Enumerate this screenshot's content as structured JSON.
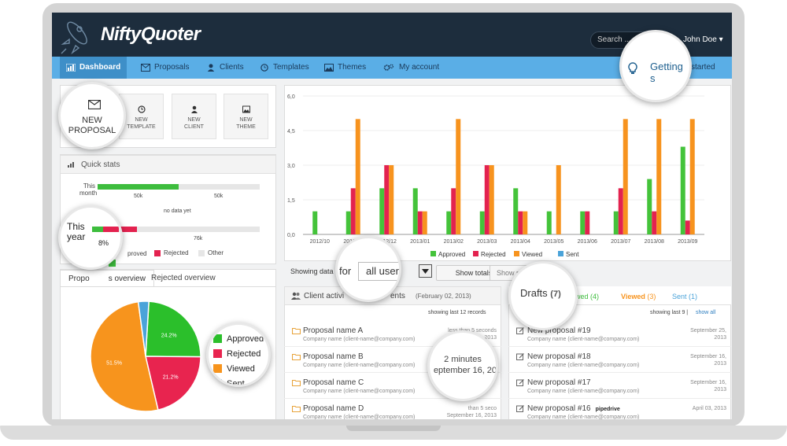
{
  "app": {
    "logo": "NiftyQuoter",
    "search_placeholder": "Search ...",
    "user": "John Doe ▾"
  },
  "nav": {
    "dashboard": "Dashboard",
    "proposals": "Proposals",
    "clients": "Clients",
    "templates": "Templates",
    "themes": "Themes",
    "account": "My account",
    "getting_started": "Getting s",
    "getting_started_rest": "started"
  },
  "quick_actions": {
    "new_proposal_1": "NEW",
    "new_proposal_2": "PROPOSAL",
    "new_template_1": "NEW",
    "new_template_2": "TEMPLATE",
    "new_client_1": "NEW",
    "new_client_2": "CLIENT",
    "new_theme_1": "NEW",
    "new_theme_2": "THEME"
  },
  "quick_stats": {
    "title": "Quick stats",
    "this_month_1": "This",
    "this_month_2": "month",
    "month_left_value": "50k",
    "month_right_value": "50k",
    "month_fill": 0.5,
    "no_data": "no data yet",
    "this_year_1": "This",
    "this_year_2": "year",
    "year_left_value": "8%",
    "year_right_value": "76k",
    "legend_approved": "Approved",
    "legend_rejected": "Rejected",
    "legend_other": "Other",
    "legend_approved_partial": "proved"
  },
  "overview_tabs": {
    "proposals": "Proposals overview",
    "proposals_partial": "Propo",
    "proposals_partial2": "s overview",
    "rejected": "Rejected overview"
  },
  "pie": {
    "slices": [
      {
        "label": "Approved",
        "value": 24.2,
        "color": "#2bbf2b",
        "text": "24.2%"
      },
      {
        "label": "Rejected",
        "value": 21.2,
        "color": "#e8244f",
        "text": "21.2%"
      },
      {
        "label": "Viewed",
        "value": 51.5,
        "color": "#f7941d",
        "text": "51.5%"
      },
      {
        "label": "Sent",
        "value": 3.1,
        "color": "#4aa3d9",
        "text": ""
      }
    ],
    "legend": [
      "Approved",
      "Rejected",
      "Viewed",
      "Sent"
    ]
  },
  "chart_data": {
    "type": "bar",
    "categories": [
      "2012/10",
      "2012/11",
      "2012/12",
      "2013/01",
      "2013/02",
      "2013/03",
      "2013/04",
      "2013/05",
      "2013/06",
      "2013/07",
      "2013/08",
      "2013/09"
    ],
    "series": [
      {
        "name": "Approved",
        "color": "#44c33a",
        "values": [
          1,
          1,
          2,
          2,
          1,
          1,
          2,
          1,
          1,
          1,
          2.4,
          3.8
        ]
      },
      {
        "name": "Rejected",
        "color": "#e3224f",
        "values": [
          0,
          2,
          3,
          1,
          2,
          3,
          1,
          0,
          1,
          2,
          1,
          0.6
        ]
      },
      {
        "name": "Viewed",
        "color": "#f7931e",
        "values": [
          0,
          5,
          3,
          1,
          5,
          3,
          1,
          3,
          0,
          5,
          5,
          5
        ]
      },
      {
        "name": "Sent",
        "color": "#4aa3d9",
        "values": [
          0,
          0,
          0,
          0,
          0,
          0,
          0,
          0,
          0,
          0,
          0,
          0
        ]
      }
    ],
    "ylim": [
      0,
      6
    ],
    "yticks": [
      "0,0",
      "1,5",
      "3,0",
      "4,5",
      "6,0"
    ],
    "legend": [
      "Approved",
      "Rejected",
      "Viewed",
      "Sent"
    ]
  },
  "filter": {
    "showing_data": "Showing data",
    "for": "for",
    "users_value": "all users",
    "show_totals": "Show totals",
    "show_partial": "Show r"
  },
  "activity": {
    "title_1": "Client activi",
    "title_2": "ents",
    "date": "(February 02, 2013)",
    "showing": "showing last 12 records",
    "rows": [
      {
        "name": "Proposal name A",
        "company": "Company name (client-name@company.com)",
        "time_1": "less than 5 seconds",
        "time_2": "September 16, 2013"
      },
      {
        "name": "Proposal name B",
        "company": "Company name (client-name@company.com)",
        "time_1": "",
        "time_2": ""
      },
      {
        "name": "Proposal name C",
        "company": "Company name (client-name@company.com)",
        "time_1": "",
        "time_2": ""
      },
      {
        "name": "Proposal name D",
        "company": "Company name (client-name@company.com)",
        "time_1": "than 5 seco",
        "time_2": "September 16, 2013"
      }
    ],
    "bubble_1": "2 minutes",
    "bubble_2": "eptember 16, 20"
  },
  "drafts": {
    "title": "Drafts",
    "count": "(7)",
    "viewed_partial": "wed",
    "viewed_partial_count": "(4)",
    "viewed": "Viewed",
    "viewed_count": "(3)",
    "sent": "Sent",
    "sent_count": "(1)",
    "showing": "showing last 9 |",
    "show_all": "show all",
    "rows": [
      {
        "name": "New proposal #19",
        "company": "Company name (client-name@company.com)",
        "date_1": "September 25,",
        "date_2": "2013",
        "tag": ""
      },
      {
        "name": "New proposal #18",
        "company": "Company name (client-name@company.com)",
        "date_1": "September 16,",
        "date_2": "2013",
        "tag": ""
      },
      {
        "name": "New proposal #17",
        "company": "Company name (client-name@company.com)",
        "date_1": "September 16,",
        "date_2": "2013",
        "tag": ""
      },
      {
        "name": "New proposal #16",
        "company": "Company name (client-name@company.com)",
        "date_1": "April 03, 2013",
        "date_2": "",
        "tag": "pipedrive"
      }
    ]
  }
}
